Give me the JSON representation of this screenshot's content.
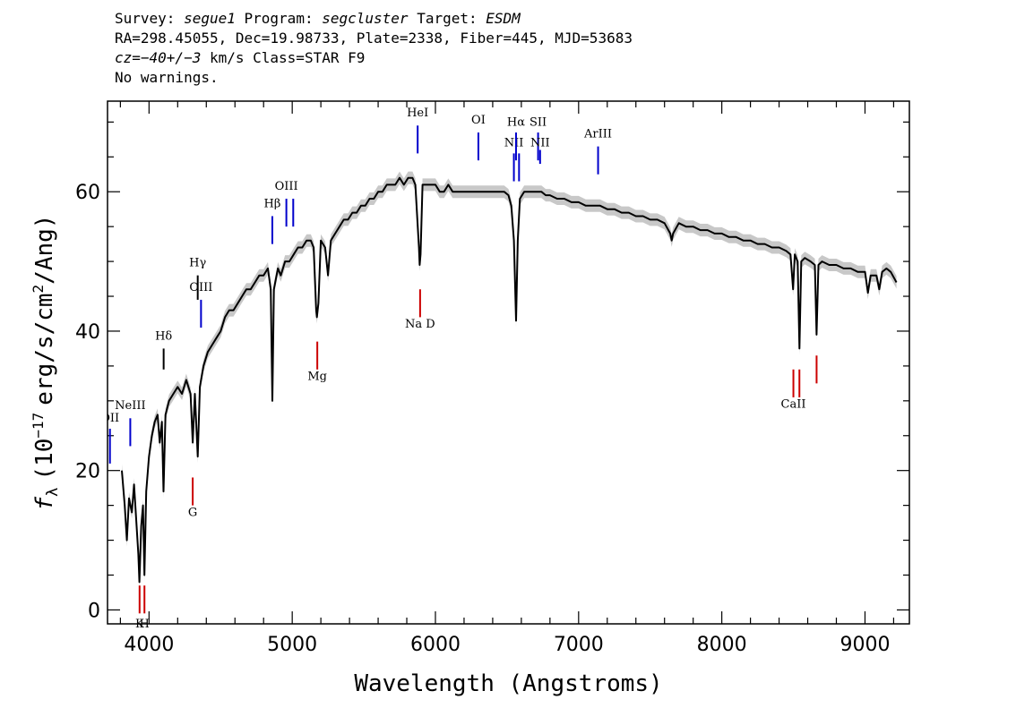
{
  "header": {
    "survey_label": "Survey:",
    "survey": "segue1",
    "program_label": "Program:",
    "program": "segcluster",
    "target_label": "Target:",
    "target": "ESDM",
    "coords": "RA=298.45055, Dec=19.98733, Plate=2338, Fiber=445, MJD=53683",
    "cz": "cz=−40+/−3",
    "cz_unit": "km/s",
    "class": "Class=STAR F9",
    "warnings": "No warnings."
  },
  "chart_data": {
    "type": "line",
    "xlabel": "Wavelength (Angstroms)",
    "ylabel_prefix": "f",
    "ylabel_sub": "λ",
    "ylabel_units": "(10",
    "ylabel_exp": "−17",
    "ylabel_rest": "erg/s/cm",
    "ylabel_exp2": "2",
    "ylabel_tail": "/Ang)",
    "xlim": [
      3710,
      9310
    ],
    "ylim": [
      -2,
      73
    ],
    "x_ticks": [
      4000,
      5000,
      6000,
      7000,
      8000,
      9000
    ],
    "x_tick_labels": [
      "4000",
      "5000",
      "6000",
      "7000",
      "8000",
      "9000"
    ],
    "y_ticks": [
      0,
      20,
      40,
      60
    ],
    "y_tick_labels": [
      "0",
      "20",
      "40",
      "60"
    ],
    "grid": false,
    "series": [
      {
        "color": "#000000",
        "error_color": "#b0b0b0",
        "points": [
          [
            3810,
            20
          ],
          [
            3830,
            15
          ],
          [
            3845,
            10
          ],
          [
            3860,
            16
          ],
          [
            3880,
            14
          ],
          [
            3895,
            18
          ],
          [
            3910,
            13
          ],
          [
            3925,
            8
          ],
          [
            3933,
            4
          ],
          [
            3945,
            12
          ],
          [
            3958,
            15
          ],
          [
            3968,
            5
          ],
          [
            3980,
            17
          ],
          [
            4000,
            22
          ],
          [
            4020,
            25
          ],
          [
            4040,
            27
          ],
          [
            4060,
            28
          ],
          [
            4075,
            24
          ],
          [
            4090,
            27
          ],
          [
            4101,
            17
          ],
          [
            4115,
            28
          ],
          [
            4140,
            30
          ],
          [
            4170,
            31
          ],
          [
            4200,
            32
          ],
          [
            4230,
            31
          ],
          [
            4260,
            33
          ],
          [
            4290,
            31
          ],
          [
            4305,
            24
          ],
          [
            4320,
            31
          ],
          [
            4340,
            22
          ],
          [
            4355,
            32
          ],
          [
            4380,
            35
          ],
          [
            4410,
            37
          ],
          [
            4440,
            38
          ],
          [
            4470,
            39
          ],
          [
            4500,
            40
          ],
          [
            4530,
            42
          ],
          [
            4560,
            43
          ],
          [
            4590,
            43
          ],
          [
            4620,
            44
          ],
          [
            4650,
            45
          ],
          [
            4680,
            46
          ],
          [
            4710,
            46
          ],
          [
            4740,
            47
          ],
          [
            4770,
            48
          ],
          [
            4800,
            48
          ],
          [
            4830,
            49
          ],
          [
            4850,
            46
          ],
          [
            4861,
            30
          ],
          [
            4872,
            46
          ],
          [
            4900,
            49
          ],
          [
            4920,
            48
          ],
          [
            4950,
            50
          ],
          [
            4980,
            50
          ],
          [
            5010,
            51
          ],
          [
            5040,
            52
          ],
          [
            5070,
            52
          ],
          [
            5100,
            53
          ],
          [
            5130,
            53
          ],
          [
            5150,
            52
          ],
          [
            5167,
            43
          ],
          [
            5172,
            42
          ],
          [
            5183,
            44
          ],
          [
            5200,
            53
          ],
          [
            5230,
            52
          ],
          [
            5250,
            48
          ],
          [
            5270,
            53
          ],
          [
            5300,
            54
          ],
          [
            5330,
            55
          ],
          [
            5360,
            56
          ],
          [
            5390,
            56
          ],
          [
            5420,
            57
          ],
          [
            5450,
            57
          ],
          [
            5480,
            58
          ],
          [
            5510,
            58
          ],
          [
            5540,
            59
          ],
          [
            5570,
            59
          ],
          [
            5600,
            60
          ],
          [
            5630,
            60
          ],
          [
            5660,
            61
          ],
          [
            5690,
            61
          ],
          [
            5720,
            61
          ],
          [
            5750,
            62
          ],
          [
            5780,
            61
          ],
          [
            5810,
            62
          ],
          [
            5840,
            62
          ],
          [
            5860,
            61
          ],
          [
            5885,
            52
          ],
          [
            5890,
            49.5
          ],
          [
            5896,
            51
          ],
          [
            5910,
            61
          ],
          [
            5940,
            61
          ],
          [
            5970,
            61
          ],
          [
            6000,
            61
          ],
          [
            6030,
            60
          ],
          [
            6060,
            60
          ],
          [
            6090,
            61
          ],
          [
            6120,
            60
          ],
          [
            6150,
            60
          ],
          [
            6180,
            60
          ],
          [
            6210,
            60
          ],
          [
            6240,
            60
          ],
          [
            6270,
            60
          ],
          [
            6300,
            60
          ],
          [
            6330,
            60
          ],
          [
            6360,
            60
          ],
          [
            6390,
            60
          ],
          [
            6420,
            60
          ],
          [
            6450,
            60
          ],
          [
            6480,
            60
          ],
          [
            6510,
            59.5
          ],
          [
            6530,
            58
          ],
          [
            6548,
            53
          ],
          [
            6563,
            41.5
          ],
          [
            6575,
            53
          ],
          [
            6590,
            59
          ],
          [
            6620,
            60
          ],
          [
            6650,
            60
          ],
          [
            6680,
            60
          ],
          [
            6710,
            60
          ],
          [
            6740,
            60
          ],
          [
            6770,
            59.5
          ],
          [
            6800,
            59.5
          ],
          [
            6850,
            59
          ],
          [
            6900,
            59
          ],
          [
            6950,
            58.5
          ],
          [
            7000,
            58.5
          ],
          [
            7050,
            58
          ],
          [
            7100,
            58
          ],
          [
            7150,
            58
          ],
          [
            7200,
            57.5
          ],
          [
            7250,
            57.5
          ],
          [
            7300,
            57
          ],
          [
            7350,
            57
          ],
          [
            7400,
            56.5
          ],
          [
            7450,
            56.5
          ],
          [
            7500,
            56
          ],
          [
            7550,
            56
          ],
          [
            7600,
            55.5
          ],
          [
            7640,
            54
          ],
          [
            7650,
            53
          ],
          [
            7660,
            54
          ],
          [
            7700,
            55.5
          ],
          [
            7750,
            55
          ],
          [
            7800,
            55
          ],
          [
            7850,
            54.5
          ],
          [
            7900,
            54.5
          ],
          [
            7950,
            54
          ],
          [
            8000,
            54
          ],
          [
            8050,
            53.5
          ],
          [
            8100,
            53.5
          ],
          [
            8150,
            53
          ],
          [
            8200,
            53
          ],
          [
            8250,
            52.5
          ],
          [
            8300,
            52.5
          ],
          [
            8350,
            52
          ],
          [
            8400,
            52
          ],
          [
            8450,
            51.5
          ],
          [
            8480,
            51
          ],
          [
            8498,
            46
          ],
          [
            8510,
            51
          ],
          [
            8530,
            50
          ],
          [
            8542,
            37.5
          ],
          [
            8555,
            50
          ],
          [
            8580,
            50.5
          ],
          [
            8620,
            50
          ],
          [
            8650,
            49.5
          ],
          [
            8662,
            39.5
          ],
          [
            8675,
            49.5
          ],
          [
            8700,
            50
          ],
          [
            8750,
            49.5
          ],
          [
            8800,
            49.5
          ],
          [
            8850,
            49
          ],
          [
            8900,
            49
          ],
          [
            8950,
            48.5
          ],
          [
            9000,
            48.5
          ],
          [
            9020,
            45.5
          ],
          [
            9040,
            48
          ],
          [
            9080,
            48
          ],
          [
            9100,
            46
          ],
          [
            9120,
            48.5
          ],
          [
            9150,
            49
          ],
          [
            9180,
            48.5
          ],
          [
            9220,
            47
          ]
        ]
      }
    ],
    "annotations": [
      {
        "label": "OII",
        "wavelength": 3727,
        "color": "#0000cc",
        "y_top": 26,
        "y_bottom": 21,
        "label_y": 27
      },
      {
        "label": "NeIII",
        "wavelength": 3869,
        "color": "#0000cc",
        "y_top": 27.5,
        "y_bottom": 23.5,
        "label_y": 28.8
      },
      {
        "label": "Hδ",
        "wavelength": 4102,
        "color": "#000000",
        "y_top": 37.5,
        "y_bottom": 34.5,
        "label_y": 38.8
      },
      {
        "label": "Hγ",
        "wavelength": 4340,
        "color": "#000000",
        "y_top": 48,
        "y_bottom": 44.5,
        "label_y": 49.3
      },
      {
        "label": "OIII",
        "wavelength": 4363,
        "color": "#0000cc",
        "y_top": 44.5,
        "y_bottom": 40.5,
        "label_y": 45.8
      },
      {
        "label": "Hβ",
        "wavelength": 4861,
        "color": "#0000cc",
        "y_top": 56.5,
        "y_bottom": 52.5,
        "label_y": 57.8
      },
      {
        "label": "OIII",
        "wavelength": 4959,
        "color": "#0000cc",
        "y_top": 59,
        "y_bottom": 55,
        "label_y": 60.3
      },
      {
        "label": "",
        "wavelength": 5007,
        "color": "#0000cc",
        "y_top": 59,
        "y_bottom": 55,
        "label_y": 60.3
      },
      {
        "label": "HeI",
        "wavelength": 5876,
        "color": "#0000cc",
        "y_top": 69.5,
        "y_bottom": 65.5,
        "label_y": 70.8
      },
      {
        "label": "OI",
        "wavelength": 6300,
        "color": "#0000cc",
        "y_top": 68.5,
        "y_bottom": 64.5,
        "label_y": 69.8
      },
      {
        "label": "NII",
        "wavelength": 6548,
        "color": "#0000cc",
        "y_top": 65.5,
        "y_bottom": 61.5,
        "label_y": 66.5
      },
      {
        "label": "Hα",
        "wavelength": 6563,
        "color": "#0000cc",
        "y_top": 68.5,
        "y_bottom": 64.5,
        "label_y": 69.5
      },
      {
        "label": "",
        "wavelength": 6584,
        "color": "#0000cc",
        "y_top": 65.5,
        "y_bottom": 61.5,
        "label_y": 66.5
      },
      {
        "label": "SII",
        "wavelength": 6717,
        "color": "#0000cc",
        "y_top": 68.5,
        "y_bottom": 64.5,
        "label_y": 69.5
      },
      {
        "label": "NII",
        "wavelength": 6731,
        "color": "#0000cc",
        "y_top": 66,
        "y_bottom": 64,
        "label_y": 66.5
      },
      {
        "label": "ArIII",
        "wavelength": 7136,
        "color": "#0000cc",
        "y_top": 66.5,
        "y_bottom": 62.5,
        "label_y": 67.8
      },
      {
        "label": "K",
        "wavelength": 3934,
        "color": "#cc0000",
        "y_top": 3.5,
        "y_bottom": -0.5,
        "label_y": -2.5
      },
      {
        "label": "H",
        "wavelength": 3968,
        "color": "#cc0000",
        "y_top": 3.5,
        "y_bottom": -0.5,
        "label_y": -2.5
      },
      {
        "label": "G",
        "wavelength": 4305,
        "color": "#cc0000",
        "y_top": 19,
        "y_bottom": 15,
        "label_y": 13.5
      },
      {
        "label": "Mg",
        "wavelength": 5175,
        "color": "#cc0000",
        "y_top": 38.5,
        "y_bottom": 34.5,
        "label_y": 33
      },
      {
        "label": "Na D",
        "wavelength": 5893,
        "color": "#cc0000",
        "y_top": 46,
        "y_bottom": 42,
        "label_y": 40.5
      },
      {
        "label": "CaII",
        "wavelength": 8500,
        "color": "#cc0000",
        "y_top": 34.5,
        "y_bottom": 30.5,
        "label_y": 29
      },
      {
        "label": "",
        "wavelength": 8542,
        "color": "#cc0000",
        "y_top": 34.5,
        "y_bottom": 30.5,
        "label_y": 29
      },
      {
        "label": "",
        "wavelength": 8662,
        "color": "#cc0000",
        "y_top": 36.5,
        "y_bottom": 32.5,
        "label_y": 29
      }
    ]
  }
}
